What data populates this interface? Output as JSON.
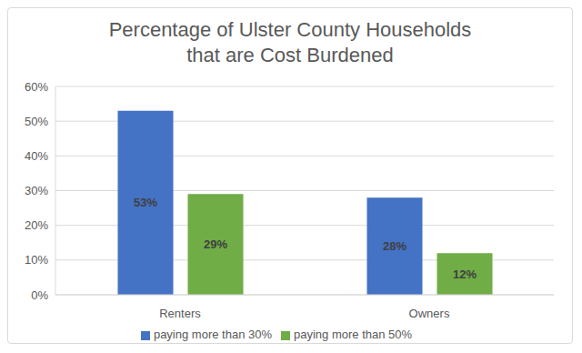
{
  "chart_data": {
    "type": "bar",
    "title": "Percentage of Ulster County Households\nthat are Cost Burdened",
    "categories": [
      "Renters",
      "Owners"
    ],
    "series": [
      {
        "name": "paying more than 30%",
        "color": "#4472c4",
        "values": [
          53,
          28
        ],
        "value_labels": [
          "53%",
          "28%"
        ]
      },
      {
        "name": "paying more than 50%",
        "color": "#70ad47",
        "values": [
          29,
          12
        ],
        "value_labels": [
          "29%",
          "12%"
        ]
      }
    ],
    "ylim": [
      0,
      60
    ],
    "yticks": [
      {
        "value": 0,
        "label": "0%"
      },
      {
        "value": 10,
        "label": "10%"
      },
      {
        "value": 20,
        "label": "20%"
      },
      {
        "value": 30,
        "label": "30%"
      },
      {
        "value": 40,
        "label": "40%"
      },
      {
        "value": 50,
        "label": "50%"
      },
      {
        "value": 60,
        "label": "60%"
      }
    ],
    "grid": true,
    "legend": "bottom",
    "data_labels": true
  }
}
